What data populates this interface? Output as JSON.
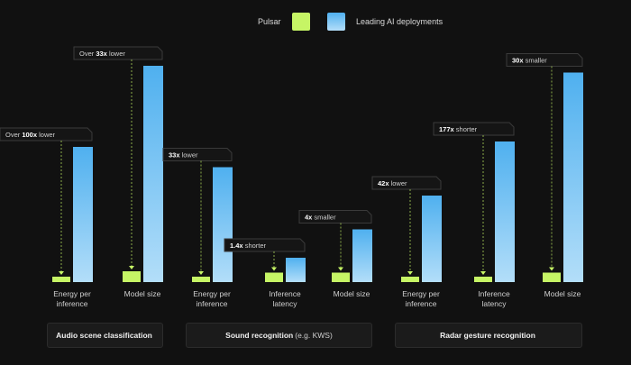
{
  "legend": {
    "pulsar_label": "Pulsar",
    "leading_label": "Leading AI deployments"
  },
  "colors": {
    "background": "#111111",
    "pulsar": "#c6f565",
    "leading_top": "#4fb0ef",
    "leading_bottom": "#b3def9",
    "callout_border": "#3a3a3a"
  },
  "groups": [
    {
      "label": "Audio scene classification",
      "note": ""
    },
    {
      "label": "Sound recognition",
      "note": "(e.g. KWS)"
    },
    {
      "label": "Radar gesture recognition",
      "note": ""
    }
  ],
  "chart_data": {
    "type": "bar",
    "title": "",
    "series": [
      {
        "name": "Pulsar"
      },
      {
        "name": "Leading AI deployments"
      }
    ],
    "pairs": [
      {
        "group": 0,
        "category": [
          "Energy per",
          "inference"
        ],
        "pulsar": 0.04,
        "leading": 1.0,
        "callout": {
          "prefix": "Over ",
          "bold": "100x",
          "suffix": " lower"
        }
      },
      {
        "group": 0,
        "category": [
          "Model size"
        ],
        "pulsar": 0.08,
        "leading": 1.6,
        "callout": {
          "prefix": "Over ",
          "bold": "33x",
          "suffix": " lower"
        }
      },
      {
        "group": 1,
        "category": [
          "Energy per",
          "inference"
        ],
        "pulsar": 0.04,
        "leading": 0.85,
        "callout": {
          "prefix": "",
          "bold": "33x",
          "suffix": " lower"
        }
      },
      {
        "group": 1,
        "category": [
          "Inference",
          "latency"
        ],
        "pulsar": 0.07,
        "leading": 0.18,
        "callout": {
          "prefix": "",
          "bold": "1.4x",
          "suffix": " shorter"
        }
      },
      {
        "group": 1,
        "category": [
          "Model size"
        ],
        "pulsar": 0.07,
        "leading": 0.39,
        "callout": {
          "prefix": "",
          "bold": "4x",
          "suffix": " smaller"
        }
      },
      {
        "group": 2,
        "category": [
          "Energy per",
          "inference"
        ],
        "pulsar": 0.04,
        "leading": 0.64,
        "callout": {
          "prefix": "",
          "bold": "42x",
          "suffix": " lower"
        }
      },
      {
        "group": 2,
        "category": [
          "Inference",
          "latency"
        ],
        "pulsar": 0.04,
        "leading": 1.04,
        "callout": {
          "prefix": "",
          "bold": "177x",
          "suffix": " shorter"
        }
      },
      {
        "group": 2,
        "category": [
          "Model size"
        ],
        "pulsar": 0.07,
        "leading": 1.55,
        "callout": {
          "prefix": "",
          "bold": "30x",
          "suffix": " smaller"
        }
      }
    ]
  }
}
